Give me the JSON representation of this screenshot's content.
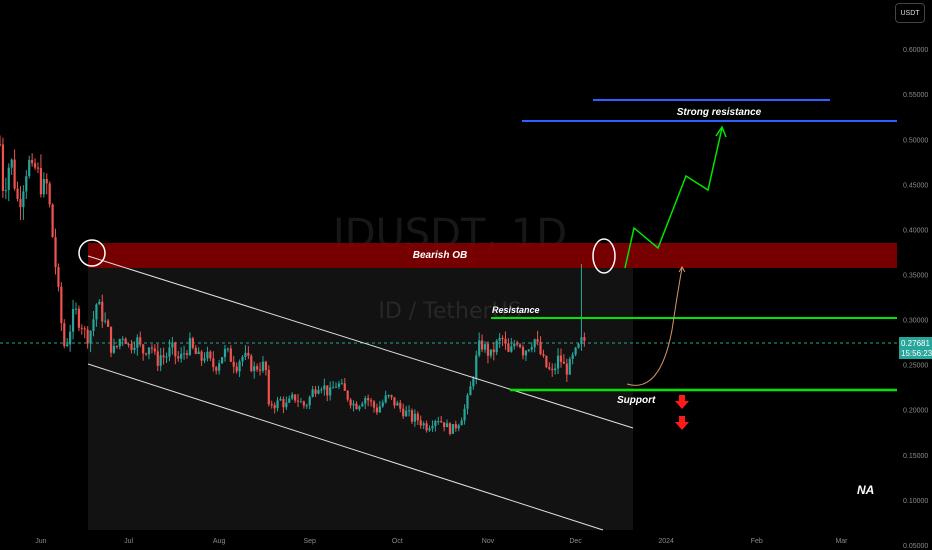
{
  "currency_badge": "USDT",
  "chart_data": {
    "type": "candlestick",
    "symbol": "IDUSDT, 1D",
    "subtitle": "ID / TetherUS",
    "y_axis": {
      "ticks": [
        "0.60000",
        "0.55000",
        "0.50000",
        "0.45000",
        "0.40000",
        "0.35000",
        "0.30000",
        "0.25000",
        "0.20000",
        "0.15000",
        "0.10000",
        "0.05000"
      ],
      "range": [
        0.045,
        0.655
      ]
    },
    "x_axis": {
      "ticks": [
        "Jun",
        "Jul",
        "Aug",
        "Sep",
        "Oct",
        "Nov",
        "Dec",
        "2024",
        "Feb",
        "Mar"
      ],
      "range": [
        "2023-05-18",
        "2024-03-20"
      ]
    },
    "current_price": {
      "value": "0.27681",
      "countdown": "15:56:23",
      "color": "#26a69a"
    },
    "colors": {
      "up": "#26a69a",
      "down": "#ef5350",
      "annotation_green": "#00e600",
      "strong_res": "#2962ff",
      "bearish_ob": "#8b0000"
    },
    "closes": [
      0.495,
      0.44,
      0.465,
      0.48,
      0.455,
      0.43,
      0.44,
      0.465,
      0.475,
      0.46,
      0.47,
      0.455,
      0.445,
      0.45,
      0.42,
      0.38,
      0.34,
      0.3,
      0.27,
      0.28,
      0.3,
      0.31,
      0.3,
      0.295,
      0.28,
      0.285,
      0.3,
      0.32,
      0.31,
      0.3,
      0.29,
      0.27,
      0.265,
      0.275,
      0.285,
      0.28,
      0.27,
      0.275,
      0.28,
      0.27,
      0.265,
      0.27,
      0.275,
      0.26,
      0.255,
      0.262,
      0.258,
      0.264,
      0.268,
      0.26,
      0.255,
      0.262,
      0.268,
      0.272,
      0.265,
      0.26,
      0.255,
      0.262,
      0.258,
      0.25,
      0.248,
      0.255,
      0.262,
      0.265,
      0.26,
      0.255,
      0.25,
      0.258,
      0.26,
      0.255,
      0.25,
      0.245,
      0.25,
      0.248,
      0.252,
      0.2,
      0.21,
      0.205,
      0.212,
      0.208,
      0.205,
      0.21,
      0.215,
      0.212,
      0.208,
      0.205,
      0.21,
      0.22,
      0.225,
      0.23,
      0.228,
      0.222,
      0.218,
      0.225,
      0.23,
      0.226,
      0.22,
      0.215,
      0.21,
      0.205,
      0.208,
      0.212,
      0.215,
      0.21,
      0.205,
      0.2,
      0.205,
      0.21,
      0.215,
      0.212,
      0.208,
      0.205,
      0.2,
      0.198,
      0.195,
      0.19,
      0.192,
      0.188,
      0.185,
      0.182,
      0.185,
      0.19,
      0.192,
      0.188,
      0.185,
      0.18,
      0.178,
      0.182,
      0.188,
      0.195,
      0.205,
      0.22,
      0.24,
      0.26,
      0.275,
      0.27,
      0.265,
      0.26,
      0.27,
      0.275,
      0.28,
      0.27,
      0.26,
      0.27,
      0.28,
      0.275,
      0.265,
      0.27,
      0.275,
      0.28,
      0.27,
      0.26,
      0.25,
      0.245,
      0.24,
      0.25,
      0.26,
      0.25,
      0.245,
      0.25,
      0.26,
      0.265,
      0.275,
      0.277
    ],
    "annotations": {
      "bearish_ob": {
        "label": "Bearish OB",
        "from": 0.36,
        "to": 0.392
      },
      "strong_resistance": {
        "label": "Strong resistance",
        "levels": [
          0.556,
          0.532
        ]
      },
      "resistance": {
        "label": "Resistance",
        "level": 0.307
      },
      "support": {
        "label": "Support",
        "level": 0.222
      },
      "channel": {
        "upper": [
          0.378,
          0.18
        ],
        "lower": [
          0.258,
          0.028
        ]
      },
      "projection_path": [
        0.252,
        0.272,
        0.22,
        0.262,
        0.296,
        0.362,
        0.327,
        0.341,
        0.442,
        0.404,
        0.448,
        0.462,
        0.532
      ],
      "corner_note": "NA"
    }
  }
}
